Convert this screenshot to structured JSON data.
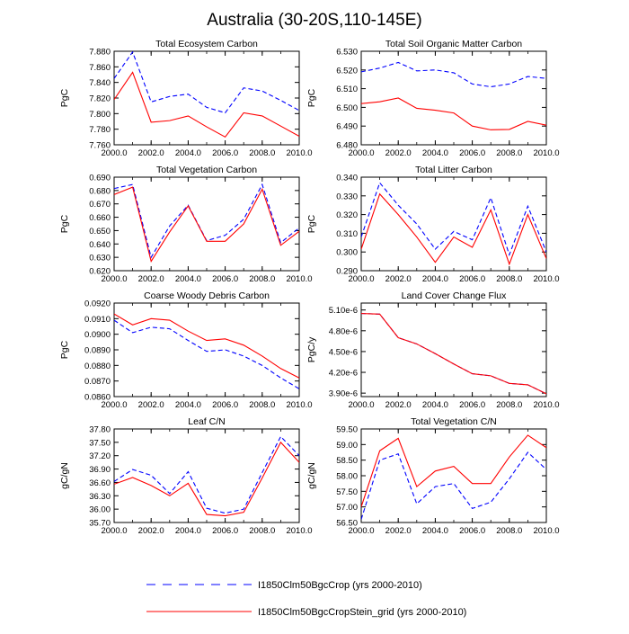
{
  "title": "Australia (30-20S,110-145E)",
  "legend": [
    {
      "label": "I1850Clm50BgcCrop (yrs 2000-2010)",
      "color": "#0000ff",
      "dash": "dashed"
    },
    {
      "label": "I1850Clm50BgcCropStein_grid (yrs 2000-2010)",
      "color": "#ff0000",
      "dash": "solid"
    }
  ],
  "chart_data": [
    {
      "type": "line",
      "title": "Total Ecosystem Carbon",
      "ylabel": "PgC",
      "x": [
        2000,
        2001,
        2002,
        2003,
        2004,
        2005,
        2006,
        2007,
        2008,
        2009,
        2010
      ],
      "xlim": [
        2000,
        2010
      ],
      "xticks": [
        "2000.0",
        "2002.0",
        "2004.0",
        "2006.0",
        "2008.0",
        "2010.0"
      ],
      "ylim": [
        7.76,
        7.88
      ],
      "yticks": [
        "7.760",
        "7.780",
        "7.800",
        "7.820",
        "7.840",
        "7.860",
        "7.880"
      ],
      "series": [
        {
          "values": [
            7.845,
            7.879,
            7.815,
            7.822,
            7.825,
            7.808,
            7.801,
            7.833,
            7.829,
            7.817,
            7.804
          ]
        },
        {
          "values": [
            7.818,
            7.853,
            7.789,
            7.791,
            7.797,
            7.783,
            7.77,
            7.801,
            7.797,
            7.784,
            7.771
          ]
        }
      ]
    },
    {
      "type": "line",
      "title": "Total Soil Organic Matter Carbon",
      "ylabel": "PgC",
      "x": [
        2000,
        2001,
        2002,
        2003,
        2004,
        2005,
        2006,
        2007,
        2008,
        2009,
        2010
      ],
      "xlim": [
        2000,
        2010
      ],
      "xticks": [
        "2000.0",
        "2002.0",
        "2004.0",
        "2006.0",
        "2008.0",
        "2010.0"
      ],
      "ylim": [
        6.48,
        6.53
      ],
      "yticks": [
        "6.480",
        "6.490",
        "6.500",
        "6.510",
        "6.520",
        "6.530"
      ],
      "series": [
        {
          "values": [
            6.519,
            6.521,
            6.524,
            6.5195,
            6.52,
            6.5185,
            6.5125,
            6.511,
            6.5125,
            6.5165,
            6.5155
          ]
        },
        {
          "values": [
            6.502,
            6.503,
            6.505,
            6.4995,
            6.4985,
            6.497,
            6.49,
            6.488,
            6.4882,
            6.4925,
            6.4905
          ]
        }
      ]
    },
    {
      "type": "line",
      "title": "Total Vegetation Carbon",
      "ylabel": "PgC",
      "x": [
        2000,
        2001,
        2002,
        2003,
        2004,
        2005,
        2006,
        2007,
        2008,
        2009,
        2010
      ],
      "xlim": [
        2000,
        2010
      ],
      "xticks": [
        "2000.0",
        "2002.0",
        "2004.0",
        "2006.0",
        "2008.0",
        "2010.0"
      ],
      "ylim": [
        0.62,
        0.69
      ],
      "yticks": [
        "0.620",
        "0.630",
        "0.640",
        "0.650",
        "0.660",
        "0.670",
        "0.680",
        "0.690"
      ],
      "series": [
        {
          "values": [
            0.6815,
            0.6845,
            0.63,
            0.6535,
            0.669,
            0.6425,
            0.6465,
            0.6585,
            0.6845,
            0.641,
            0.652
          ]
        },
        {
          "values": [
            0.677,
            0.6825,
            0.627,
            0.649,
            0.6685,
            0.642,
            0.642,
            0.655,
            0.681,
            0.639,
            0.6495
          ]
        }
      ]
    },
    {
      "type": "line",
      "title": "Total Litter Carbon",
      "ylabel": "PgC",
      "x": [
        2000,
        2001,
        2002,
        2003,
        2004,
        2005,
        2006,
        2007,
        2008,
        2009,
        2010
      ],
      "xlim": [
        2000,
        2010
      ],
      "xticks": [
        "2000.0",
        "2002.0",
        "2004.0",
        "2006.0",
        "2008.0",
        "2010.0"
      ],
      "ylim": [
        0.29,
        0.34
      ],
      "yticks": [
        "0.290",
        "0.300",
        "0.310",
        "0.320",
        "0.330",
        "0.340"
      ],
      "series": [
        {
          "values": [
            0.308,
            0.337,
            0.325,
            0.315,
            0.3015,
            0.311,
            0.3065,
            0.329,
            0.2985,
            0.3245,
            0.3
          ]
        },
        {
          "values": [
            0.3015,
            0.331,
            0.32,
            0.308,
            0.2945,
            0.308,
            0.3025,
            0.3225,
            0.2935,
            0.32,
            0.2965
          ]
        }
      ]
    },
    {
      "type": "line",
      "title": "Coarse Woody Debris Carbon",
      "ylabel": "PgC",
      "x": [
        2000,
        2001,
        2002,
        2003,
        2004,
        2005,
        2006,
        2007,
        2008,
        2009,
        2010
      ],
      "xlim": [
        2000,
        2010
      ],
      "xticks": [
        "2000.0",
        "2002.0",
        "2004.0",
        "2006.0",
        "2008.0",
        "2010.0"
      ],
      "ylim": [
        0.086,
        0.092
      ],
      "yticks": [
        "0.0860",
        "0.0870",
        "0.0880",
        "0.0890",
        "0.0900",
        "0.0910",
        "0.0920"
      ],
      "series": [
        {
          "values": [
            0.0909,
            0.0901,
            0.09045,
            0.09035,
            0.0896,
            0.0889,
            0.089,
            0.0886,
            0.088,
            0.0872,
            0.0865
          ]
        },
        {
          "values": [
            0.0913,
            0.0906,
            0.091,
            0.0909,
            0.0902,
            0.0896,
            0.0897,
            0.0893,
            0.0886,
            0.0878,
            0.0872
          ]
        }
      ]
    },
    {
      "type": "line",
      "title": "Land Cover Change Flux",
      "ylabel": "PgC/y",
      "x": [
        2000,
        2001,
        2002,
        2003,
        2004,
        2005,
        2006,
        2007,
        2008,
        2009,
        2010
      ],
      "xlim": [
        2000,
        2010
      ],
      "xticks": [
        "2000.0",
        "2002.0",
        "2004.0",
        "2006.0",
        "2008.0",
        "2010.0"
      ],
      "ylim": [
        3.85e-06,
        5.2e-06
      ],
      "yticks": [
        "3.90e-6",
        "4.20e-6",
        "4.50e-6",
        "4.80e-6",
        "5.10e-6"
      ],
      "ytick_values": [
        3.9e-06,
        4.2e-06,
        4.5e-06,
        4.8e-06,
        5.1e-06
      ],
      "series": [
        {
          "values": [
            5.05e-06,
            5.04e-06,
            4.7e-06,
            4.61e-06,
            4.47e-06,
            4.32e-06,
            4.18e-06,
            4.15e-06,
            4.04e-06,
            4.02e-06,
            3.89e-06
          ]
        },
        {
          "values": [
            5.05e-06,
            5.04e-06,
            4.7e-06,
            4.61e-06,
            4.47e-06,
            4.32e-06,
            4.18e-06,
            4.15e-06,
            4.04e-06,
            4.02e-06,
            3.89e-06
          ]
        }
      ]
    },
    {
      "type": "line",
      "title": "Leaf C/N",
      "ylabel": "gC/gN",
      "x": [
        2000,
        2001,
        2002,
        2003,
        2004,
        2005,
        2006,
        2007,
        2008,
        2009,
        2010
      ],
      "xlim": [
        2000,
        2010
      ],
      "xticks": [
        "2000.0",
        "2002.0",
        "2004.0",
        "2006.0",
        "2008.0",
        "2010.0"
      ],
      "ylim": [
        35.7,
        37.8
      ],
      "yticks": [
        "35.70",
        "36.00",
        "36.30",
        "36.60",
        "36.90",
        "37.20",
        "37.50",
        "37.80"
      ],
      "series": [
        {
          "values": [
            36.62,
            36.89,
            36.76,
            36.35,
            36.84,
            36.02,
            35.91,
            36.0,
            36.82,
            37.63,
            37.2
          ]
        },
        {
          "values": [
            36.56,
            36.71,
            36.53,
            36.3,
            36.58,
            35.88,
            35.85,
            35.93,
            36.7,
            37.5,
            37.05
          ]
        }
      ]
    },
    {
      "type": "line",
      "title": "Total Vegetation C/N",
      "ylabel": "gC/gN",
      "x": [
        2000,
        2001,
        2002,
        2003,
        2004,
        2005,
        2006,
        2007,
        2008,
        2009,
        2010
      ],
      "xlim": [
        2000,
        2010
      ],
      "xticks": [
        "2000.0",
        "2002.0",
        "2004.0",
        "2006.0",
        "2008.0",
        "2010.0"
      ],
      "ylim": [
        56.5,
        59.5
      ],
      "yticks": [
        "56.50",
        "57.00",
        "57.50",
        "58.00",
        "58.50",
        "59.00",
        "59.50"
      ],
      "series": [
        {
          "values": [
            56.6,
            58.5,
            58.7,
            57.1,
            57.65,
            57.75,
            56.95,
            57.15,
            57.9,
            58.75,
            58.2
          ]
        },
        {
          "values": [
            57.0,
            58.8,
            59.2,
            57.65,
            58.15,
            58.3,
            57.75,
            57.75,
            58.6,
            59.3,
            58.9
          ]
        }
      ]
    }
  ]
}
